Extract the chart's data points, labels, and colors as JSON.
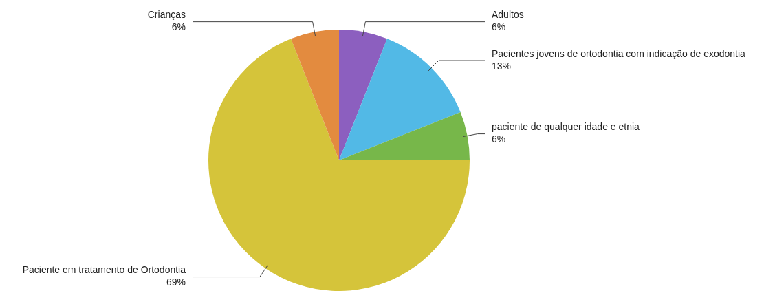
{
  "chart_data": {
    "type": "pie",
    "categories": [
      "Adultos",
      "Pacientes jovens de ortodontia com indicação de exodontia",
      "paciente de qualquer idade e etnia",
      "Paciente em tratamento de Ortodontia",
      "Crianças"
    ],
    "values": [
      6,
      13,
      6,
      69,
      6
    ],
    "value_labels": [
      "6%",
      "13%",
      "6%",
      "69%",
      "6%"
    ],
    "colors": [
      "#8c5fbf",
      "#52b9e6",
      "#77b74a",
      "#d5c43a",
      "#e38b3f"
    ],
    "legend": false
  }
}
